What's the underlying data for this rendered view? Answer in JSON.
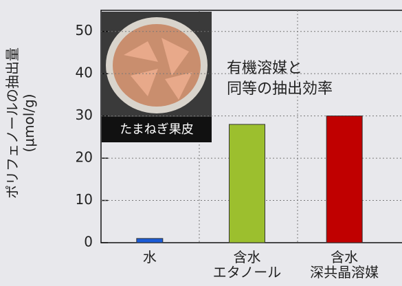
{
  "chart_data": {
    "type": "bar",
    "y_label": "ポリフェノールの抽出量\n(μmol/g)",
    "categories": [
      "水",
      "含水\nエタノール",
      "含水\n深共晶溶媒"
    ],
    "values": [
      1,
      28,
      30
    ],
    "colors": [
      "#1a5bd6",
      "#9cbf2e",
      "#c00000"
    ],
    "ylim": [
      0,
      55
    ],
    "yticks": [
      0,
      10,
      20,
      30,
      40,
      50
    ],
    "grid": true,
    "annotation": "有機溶媒と\n同等の抽出効率",
    "image_caption": "たまねぎ果皮"
  }
}
